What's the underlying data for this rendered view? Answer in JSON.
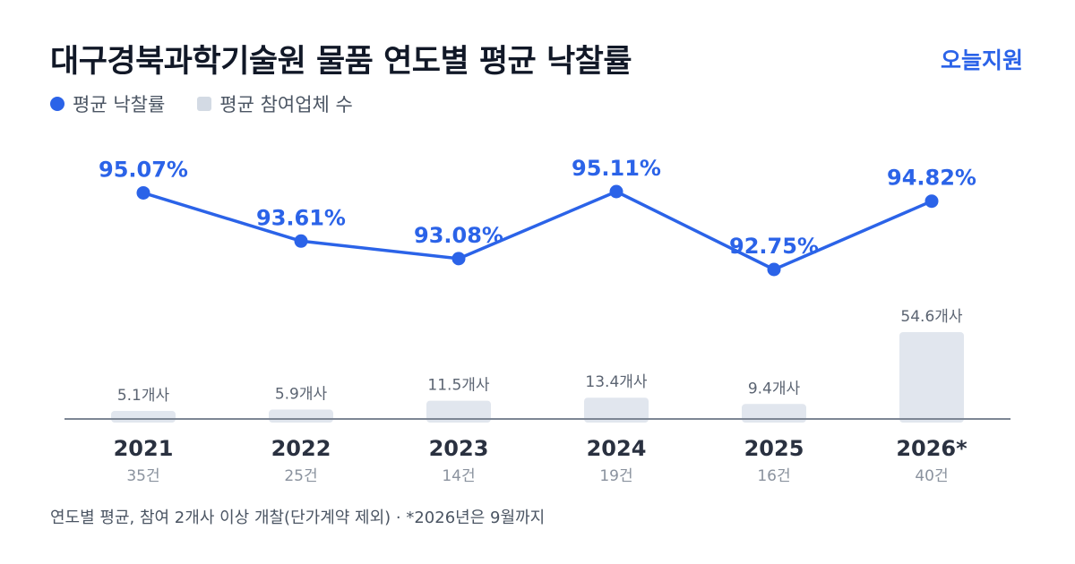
{
  "header": {
    "title": "대구경북과학기술원 물품 연도별 평균 낙찰률",
    "brand": "오늘지원"
  },
  "legend": {
    "rate_label": "평균 낙찰률",
    "bidders_label": "평균 참여업체 수"
  },
  "footnote": "연도별 평균, 참여 2개사 이상 개찰(단가계약 제외) · *2026년은 9월까지",
  "colors": {
    "line": "#2b63e8",
    "bar": "#e1e6ee",
    "axis": "#7d8694"
  },
  "chart_data": {
    "type": "bar+line",
    "categories": [
      "2021",
      "2022",
      "2023",
      "2024",
      "2025",
      "2026*"
    ],
    "counts": [
      "35건",
      "25건",
      "14건",
      "19건",
      "16건",
      "40건"
    ],
    "series": [
      {
        "name": "평균 낙찰률",
        "type": "line",
        "values": [
          95.07,
          93.61,
          93.08,
          95.11,
          92.75,
          94.82
        ],
        "labels": [
          "95.07%",
          "93.61%",
          "93.08%",
          "95.11%",
          "92.75%",
          "94.82%"
        ]
      },
      {
        "name": "평균 참여업체 수",
        "type": "bar",
        "values": [
          5.1,
          5.9,
          11.5,
          13.4,
          9.4,
          54.6
        ],
        "labels": [
          "5.1개사",
          "5.9개사",
          "11.5개사",
          "13.4개사",
          "9.4개사",
          "54.6개사"
        ]
      }
    ]
  }
}
